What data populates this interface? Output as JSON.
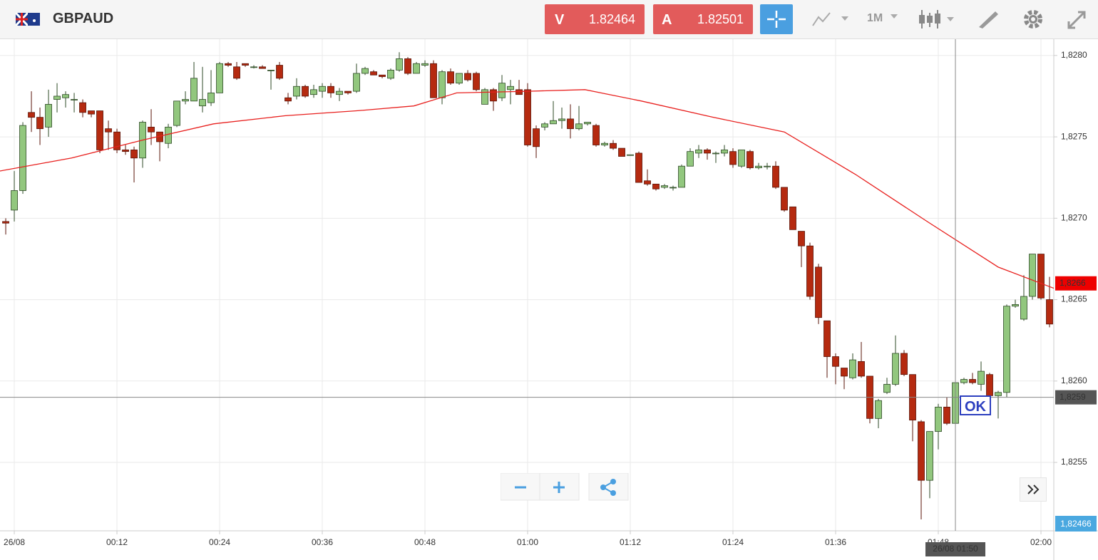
{
  "toolbar": {
    "symbol": "GBPAUD",
    "sell_label": "V",
    "sell_price": "1.82464",
    "buy_label": "A",
    "buy_price": "1.82501",
    "timeframe": "1M"
  },
  "bid_tag": "1,82466",
  "order_badge": "OK",
  "chart_data": {
    "type": "candlestick",
    "x": [
      -1,
      0,
      1,
      2,
      3,
      4,
      5,
      6,
      7,
      8,
      9,
      10,
      11,
      12,
      13,
      14,
      15,
      16,
      17,
      18,
      19,
      20,
      21,
      22,
      23,
      24,
      25,
      26,
      27,
      28,
      29,
      30,
      31,
      32,
      33,
      34,
      35,
      36,
      37,
      38,
      39,
      40,
      41,
      42,
      43,
      44,
      45,
      46,
      47,
      48,
      49,
      50,
      51,
      52,
      53,
      54,
      55,
      56,
      57,
      58,
      59,
      60,
      61,
      62,
      63,
      64,
      65,
      66,
      67,
      68,
      69,
      70,
      71,
      72,
      73,
      74,
      75,
      76,
      77,
      78,
      79,
      80,
      81,
      82,
      83,
      84,
      85,
      86,
      87,
      88,
      89,
      90,
      91,
      92,
      93,
      94,
      95,
      96,
      97,
      98,
      99,
      100,
      101,
      102,
      103,
      104,
      105,
      106,
      107,
      108,
      109,
      110,
      111,
      112,
      113,
      114,
      115,
      116,
      117,
      118,
      119,
      120,
      121
    ],
    "open": [
      1.82698,
      1.82705,
      1.82717,
      1.82765,
      1.82762,
      1.82756,
      1.82773,
      1.82774,
      1.82773,
      1.82771,
      1.82766,
      1.82766,
      1.82755,
      1.82753,
      1.82742,
      1.82742,
      1.82737,
      1.82756,
      1.82753,
      1.82746,
      1.82757,
      1.82772,
      1.82772,
      1.82769,
      1.82771,
      1.82777,
      1.82795,
      1.82793,
      1.82795,
      1.82793,
      1.82793,
      1.82791,
      1.82794,
      1.82774,
      1.82775,
      1.82781,
      1.82776,
      1.82778,
      1.82781,
      1.82776,
      1.82778,
      1.82778,
      1.82789,
      1.8279,
      1.82788,
      1.82786,
      1.82791,
      1.82798,
      1.82789,
      1.82794,
      1.82795,
      1.82774,
      1.8279,
      1.82783,
      1.82789,
      1.82789,
      1.8277,
      1.82779,
      1.82774,
      1.82779,
      1.82779,
      1.82779,
      1.82755,
      1.82756,
      1.82758,
      1.8276,
      1.82761,
      1.82755,
      1.82758,
      1.82757,
      1.82745,
      1.82746,
      1.82743,
      1.82739,
      1.8274,
      1.82723,
      1.82721,
      1.82719,
      1.82719,
      1.82719,
      1.82732,
      1.8274,
      1.82742,
      1.8274,
      1.8274,
      1.82741,
      1.82732,
      1.82741,
      1.82731,
      1.82732,
      1.82732,
      1.82719,
      1.82707,
      1.82692,
      1.82683,
      1.8267,
      1.82637,
      1.82615,
      1.82608,
      1.82602,
      1.82612,
      1.82603,
      1.82577,
      1.82593,
      1.82598,
      1.82617,
      1.82604,
      1.82575,
      1.82539,
      1.82569,
      1.82584,
      1.82574,
      1.82599,
      1.82601,
      1.82598,
      1.82604,
      1.82591,
      1.82593,
      1.82646,
      1.82638,
      1.82652,
      1.82678,
      1.8265
    ],
    "high": [
      1.827,
      1.82729,
      1.82759,
      1.82778,
      1.82768,
      1.82779,
      1.82783,
      1.82778,
      1.82777,
      1.82773,
      1.82766,
      1.82766,
      1.8276,
      1.82755,
      1.82745,
      1.82744,
      1.8276,
      1.82767,
      1.82753,
      1.82758,
      1.82772,
      1.82778,
      1.82796,
      1.82793,
      1.82791,
      1.82796,
      1.82796,
      1.82796,
      1.82795,
      1.82794,
      1.82794,
      1.82791,
      1.82796,
      1.82777,
      1.82786,
      1.82782,
      1.82782,
      1.82783,
      1.82783,
      1.8278,
      1.82778,
      1.82795,
      1.82793,
      1.82791,
      1.82788,
      1.82792,
      1.82802,
      1.82799,
      1.82796,
      1.82797,
      1.82797,
      1.82791,
      1.82792,
      1.82789,
      1.82791,
      1.8279,
      1.8278,
      1.8278,
      1.82788,
      1.82785,
      1.82785,
      1.82783,
      1.82757,
      1.82759,
      1.82772,
      1.82768,
      1.8277,
      1.82769,
      1.82759,
      1.82758,
      1.82747,
      1.82748,
      1.82743,
      1.82739,
      1.82741,
      1.8273,
      1.82721,
      1.82721,
      1.8272,
      1.82733,
      1.82743,
      1.82745,
      1.82743,
      1.82741,
      1.82745,
      1.82743,
      1.82742,
      1.82742,
      1.82734,
      1.82734,
      1.82735,
      1.82719,
      1.82707,
      1.82692,
      1.82685,
      1.82672,
      1.82637,
      1.82617,
      1.82608,
      1.82617,
      1.82624,
      1.82603,
      1.82589,
      1.82602,
      1.82628,
      1.82619,
      1.82604,
      1.82576,
      1.82569,
      1.82586,
      1.8259,
      1.826,
      1.82602,
      1.82605,
      1.82612,
      1.82605,
      1.82594,
      1.82647,
      1.8265,
      1.82665,
      1.82678,
      1.82678,
      1.82664
    ],
    "low": [
      1.8269,
      1.82698,
      1.82715,
      1.82753,
      1.82745,
      1.8275,
      1.82765,
      1.82768,
      1.82765,
      1.82762,
      1.82762,
      1.8274,
      1.82742,
      1.8274,
      1.82739,
      1.82722,
      1.82731,
      1.82745,
      1.82735,
      1.82743,
      1.82756,
      1.8277,
      1.82772,
      1.82765,
      1.82769,
      1.82777,
      1.82793,
      1.82785,
      1.82793,
      1.82792,
      1.82792,
      1.82779,
      1.82785,
      1.8277,
      1.82773,
      1.82774,
      1.82774,
      1.82774,
      1.82774,
      1.82772,
      1.82776,
      1.82777,
      1.82788,
      1.82788,
      1.82786,
      1.82785,
      1.8279,
      1.82788,
      1.82789,
      1.82793,
      1.82774,
      1.8277,
      1.82782,
      1.82782,
      1.82784,
      1.82778,
      1.8277,
      1.82766,
      1.82772,
      1.8277,
      1.82776,
      1.82744,
      1.82737,
      1.82754,
      1.82758,
      1.82755,
      1.82749,
      1.82754,
      1.82757,
      1.82744,
      1.82744,
      1.82742,
      1.82738,
      1.82739,
      1.82722,
      1.8272,
      1.82717,
      1.82718,
      1.82717,
      1.82719,
      1.82732,
      1.82737,
      1.82736,
      1.82734,
      1.82738,
      1.82731,
      1.82731,
      1.8273,
      1.8273,
      1.8273,
      1.82718,
      1.82704,
      1.82693,
      1.8267,
      1.8265,
      1.82635,
      1.82602,
      1.82598,
      1.82595,
      1.82601,
      1.82602,
      1.82574,
      1.82571,
      1.82592,
      1.82597,
      1.82603,
      1.82563,
      1.82515,
      1.82528,
      1.82558,
      1.82573,
      1.82573,
      1.82598,
      1.82598,
      1.82594,
      1.8259,
      1.82577,
      1.8259,
      1.82645,
      1.82637,
      1.8265,
      1.8265,
      1.82633
    ],
    "close": [
      1.82697,
      1.82717,
      1.82757,
      1.82762,
      1.82755,
      1.8277,
      1.82775,
      1.82776,
      1.82773,
      1.82765,
      1.82764,
      1.82742,
      1.82753,
      1.82742,
      1.82741,
      1.82737,
      1.82759,
      1.82753,
      1.82747,
      1.82756,
      1.82772,
      1.82773,
      1.82786,
      1.82773,
      1.82777,
      1.82795,
      1.82794,
      1.82786,
      1.82794,
      1.82793,
      1.82792,
      1.82791,
      1.82786,
      1.82772,
      1.82781,
      1.82775,
      1.82779,
      1.82781,
      1.82777,
      1.82778,
      1.82777,
      1.82789,
      1.82792,
      1.82788,
      1.82787,
      1.82791,
      1.82798,
      1.82789,
      1.82795,
      1.82795,
      1.82774,
      1.8279,
      1.82783,
      1.82789,
      1.82785,
      1.82779,
      1.82779,
      1.82772,
      1.82783,
      1.82781,
      1.82776,
      1.82745,
      1.82744,
      1.82758,
      1.8276,
      1.82761,
      1.82755,
      1.82758,
      1.82759,
      1.82745,
      1.82746,
      1.82743,
      1.82738,
      1.82739,
      1.82722,
      1.82721,
      1.82718,
      1.8272,
      1.82719,
      1.82732,
      1.82741,
      1.82742,
      1.8274,
      1.8274,
      1.82742,
      1.82733,
      1.82742,
      1.82731,
      1.82732,
      1.82732,
      1.82719,
      1.82705,
      1.82693,
      1.82683,
      1.82652,
      1.82639,
      1.82615,
      1.82609,
      1.82603,
      1.82613,
      1.82603,
      1.82577,
      1.82588,
      1.82598,
      1.82617,
      1.82604,
      1.82576,
      1.82539,
      1.82569,
      1.82584,
      1.82574,
      1.82599,
      1.82601,
      1.82599,
      1.82606,
      1.82591,
      1.82593,
      1.82646,
      1.82647,
      1.82652,
      1.82678,
      1.82651,
      1.82635
    ],
    "up_color": "#92c77e",
    "down_color": "#b52a10",
    "moving_average": {
      "color": "#e8201e",
      "x": [
        -1.7,
        6.7,
        15,
        23.3,
        31.7,
        40,
        46.7,
        51.7,
        60,
        66.7,
        73.3,
        81.7,
        90,
        98.3,
        106.7,
        115,
        121.5
      ],
      "values": [
        1.82729,
        1.82737,
        1.82748,
        1.82758,
        1.82763,
        1.82766,
        1.82769,
        1.82777,
        1.82778,
        1.82779,
        1.82772,
        1.82762,
        1.82753,
        1.82727,
        1.82698,
        1.8267,
        1.82657
      ]
    },
    "price_line": {
      "value": 1.8259,
      "label": "1,8259"
    },
    "last_price": {
      "value": 1.8266,
      "label": "1,8266"
    },
    "crosshair": {
      "x": 110,
      "label": "26/08 01:50"
    },
    "xlim": [
      -1.67,
      121.5
    ],
    "ylim": [
      1.82508,
      1.8281
    ],
    "xticks": [
      {
        "value": 0,
        "label": "26/08"
      },
      {
        "value": 12,
        "label": "00:12"
      },
      {
        "value": 24,
        "label": "00:24"
      },
      {
        "value": 36,
        "label": "00:36"
      },
      {
        "value": 48,
        "label": "00:48"
      },
      {
        "value": 60,
        "label": "01:00"
      },
      {
        "value": 72,
        "label": "01:12"
      },
      {
        "value": 84,
        "label": "01:24"
      },
      {
        "value": 96,
        "label": "01:36"
      },
      {
        "value": 108,
        "label": "01:48"
      },
      {
        "value": 120,
        "label": "02:00"
      }
    ],
    "yticks": [
      {
        "value": 1.8255,
        "label": "1,8255"
      },
      {
        "value": 1.826,
        "label": "1,8260"
      },
      {
        "value": 1.8265,
        "label": "1,8265"
      },
      {
        "value": 1.827,
        "label": "1,8270"
      },
      {
        "value": 1.8275,
        "label": "1,8275"
      },
      {
        "value": 1.828,
        "label": "1,8280"
      }
    ],
    "grid": true
  }
}
